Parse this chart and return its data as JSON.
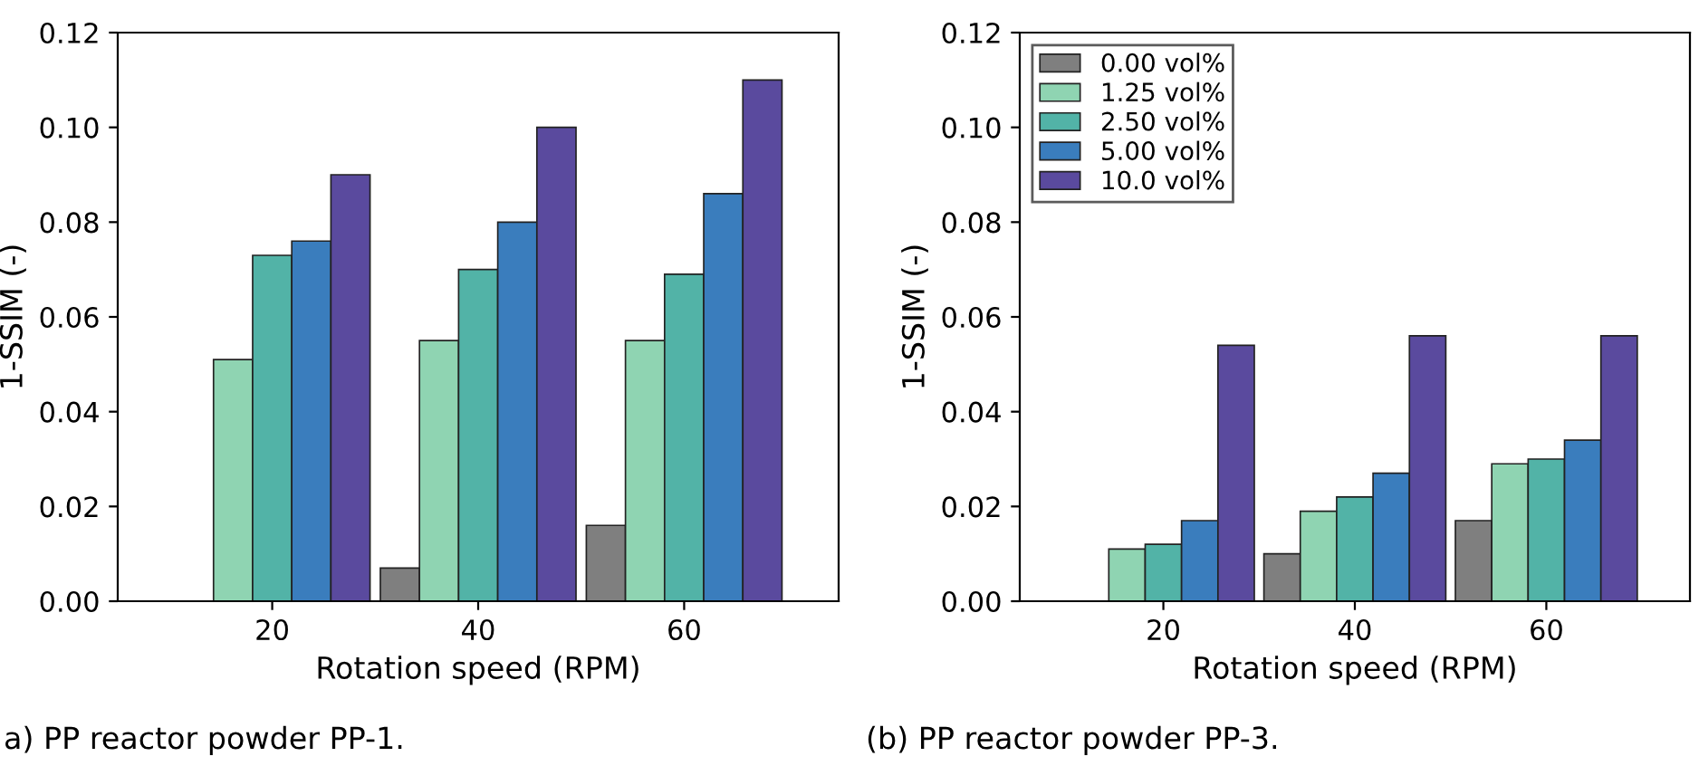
{
  "chart_data": [
    {
      "type": "bar",
      "categories": [
        "20",
        "40",
        "60"
      ],
      "xlabel": "Rotation speed (RPM)",
      "ylabel": "1-SSIM (-)",
      "ylim": [
        0,
        0.12
      ],
      "yticks": [
        {
          "value": 0,
          "label": "0.00"
        },
        {
          "value": 0.02,
          "label": "0.02"
        },
        {
          "value": 0.04,
          "label": "0.04"
        },
        {
          "value": 0.06,
          "label": "0.06"
        },
        {
          "value": 0.08,
          "label": "0.08"
        },
        {
          "value": 0.1,
          "label": "0.10"
        },
        {
          "value": 0.12,
          "label": "0.12"
        }
      ],
      "grid": false,
      "legend": false,
      "annotations": [
        "a) PP reactor powder PP-1."
      ],
      "series": [
        {
          "color": "#7f7f7f",
          "values": [
            null,
            0.007,
            0.016
          ]
        },
        {
          "color": "#8fd4b2",
          "values": [
            0.051,
            0.055,
            0.055
          ]
        },
        {
          "color": "#52b3a7",
          "values": [
            0.073,
            0.07,
            0.069
          ]
        },
        {
          "color": "#3a7dbd",
          "values": [
            0.076,
            0.08,
            0.086
          ]
        },
        {
          "color": "#5a4a9e",
          "values": [
            0.09,
            0.1,
            0.11
          ]
        }
      ]
    },
    {
      "type": "bar",
      "categories": [
        "20",
        "40",
        "60"
      ],
      "xlabel": "Rotation speed (RPM)",
      "ylabel": "1-SSIM (-)",
      "ylim": [
        0,
        0.12
      ],
      "yticks": [
        {
          "value": 0,
          "label": "0.00"
        },
        {
          "value": 0.02,
          "label": "0.02"
        },
        {
          "value": 0.04,
          "label": "0.04"
        },
        {
          "value": 0.06,
          "label": "0.06"
        },
        {
          "value": 0.08,
          "label": "0.08"
        },
        {
          "value": 0.1,
          "label": "0.10"
        },
        {
          "value": 0.12,
          "label": "0.12"
        }
      ],
      "grid": false,
      "legend": "top left",
      "annotations": [
        "(b) PP reactor powder PP-3."
      ],
      "series": [
        {
          "name": "0.00 vol%",
          "color": "#7f7f7f",
          "values": [
            null,
            0.01,
            0.017
          ]
        },
        {
          "name": "1.25 vol%",
          "color": "#8fd4b2",
          "values": [
            0.011,
            0.019,
            0.029
          ]
        },
        {
          "name": "2.50 vol%",
          "color": "#52b3a7",
          "values": [
            0.012,
            0.022,
            0.03
          ]
        },
        {
          "name": "5.00 vol%",
          "color": "#3a7dbd",
          "values": [
            0.017,
            0.027,
            0.034
          ]
        },
        {
          "name": "10.0 vol%",
          "color": "#5a4a9e",
          "values": [
            0.054,
            0.056,
            0.056
          ]
        }
      ]
    }
  ]
}
